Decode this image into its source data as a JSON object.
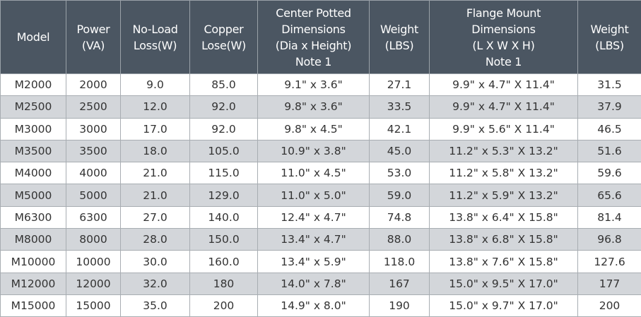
{
  "table": {
    "header": [
      [
        "Model"
      ],
      [
        "Power",
        "(VA)"
      ],
      [
        "No-Load",
        "Loss(W)"
      ],
      [
        "Copper",
        "Lose(W)"
      ],
      [
        "Center Potted",
        "Dimensions",
        "(Dia x Height)",
        "Note 1"
      ],
      [
        "Weight",
        "(LBS)"
      ],
      [
        "Flange Mount",
        "Dimensions",
        "(L X W X H)",
        "Note 1"
      ],
      [
        "Weight",
        "(LBS)"
      ]
    ],
    "rows": [
      [
        "M2000",
        "2000",
        "9.0",
        "85.0",
        "9.1\" x 3.6\"",
        "27.1",
        "9.9\" x 4.7\" X 11.4\"",
        "31.5"
      ],
      [
        "M2500",
        "2500",
        "12.0",
        "92.0",
        "9.8\" x 3.6\"",
        "33.5",
        "9.9\" x 4.7\" X 11.4\"",
        "37.9"
      ],
      [
        "M3000",
        "3000",
        "17.0",
        "92.0",
        "9.8\" x 4.5\"",
        "42.1",
        "9.9\" x 5.6\" X 11.4\"",
        "46.5"
      ],
      [
        "M3500",
        "3500",
        "18.0",
        "105.0",
        "10.9\" x 3.8\"",
        "45.0",
        "11.2\" x 5.3\" X 13.2\"",
        "51.6"
      ],
      [
        "M4000",
        "4000",
        "21.0",
        "115.0",
        "11.0\" x 4.5\"",
        "53.0",
        "11.2\" x 5.8\" X 13.2\"",
        "59.6"
      ],
      [
        "M5000",
        "5000",
        "21.0",
        "129.0",
        "11.0\" x 5.0\"",
        "59.0",
        "11.2\" x 5.9\" X 13.2\"",
        "65.6"
      ],
      [
        "M6300",
        "6300",
        "27.0",
        "140.0",
        "12.4\" x 4.7\"",
        "74.8",
        "13.8\" x 6.4\" X 15.8\"",
        "81.4"
      ],
      [
        "M8000",
        "8000",
        "28.0",
        "150.0",
        "13.4\" x 4.7\"",
        "88.0",
        "13.8\" x 6.8\" X 15.8\"",
        "96.8"
      ],
      [
        "M10000",
        "10000",
        "30.0",
        "160.0",
        "13.4\" x 5.9\"",
        "118.0",
        "13.8\" x 7.6\" X 15.8\"",
        "127.6"
      ],
      [
        "M12000",
        "12000",
        "32.0",
        "180",
        "14.0\" x 7.8\"",
        "167",
        "15.0\" x 9.5\" X 17.0\"",
        "177"
      ],
      [
        "M15000",
        "15000",
        "35.0",
        "200",
        "14.9\" x 8.0\"",
        "190",
        "15.0\" x 9.7\" X 17.0\"",
        "200"
      ]
    ]
  }
}
